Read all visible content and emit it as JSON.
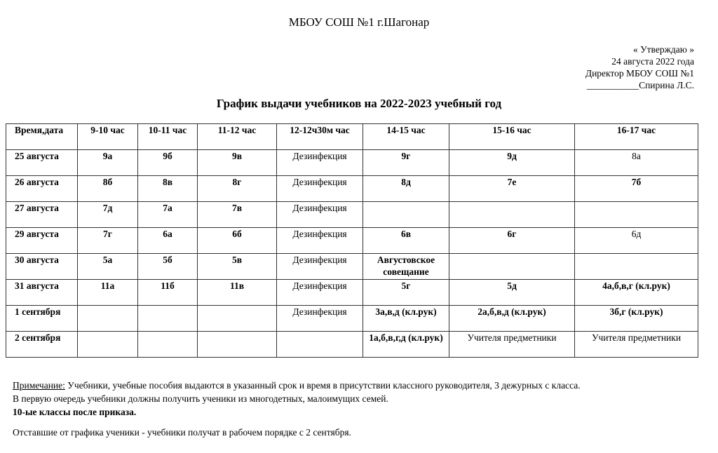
{
  "school": "МБОУ СОШ №1 г.Шагонар",
  "approval": {
    "line1": "« Утверждаю »",
    "line2": "24 августа  2022 года",
    "line3": "Директор МБОУ СОШ №1",
    "line4": "___________Спирина Л.С."
  },
  "title": "График выдачи учебников на 2022-2023 учебный год",
  "table": {
    "headers": [
      "Время,дата",
      "9-10 час",
      "10-11 час",
      "11-12 час",
      "12-12ч30м час",
      "14-15 час",
      "15-16 час",
      "16-17 час"
    ],
    "rows": [
      [
        "25 августа",
        "9а",
        "9б",
        "9в",
        "Дезинфекция",
        "9г",
        "9д",
        "8а"
      ],
      [
        "26 августа",
        "8б",
        "8в",
        "8г",
        "Дезинфекция",
        "8д",
        "7е",
        "7б"
      ],
      [
        "27 августа",
        "7д",
        "7а",
        "7в",
        "Дезинфекция",
        "",
        "",
        ""
      ],
      [
        "29 августа",
        "7г",
        "6а",
        "6б",
        "Дезинфекция",
        "6в",
        "6г",
        "6д"
      ],
      [
        "30 августа",
        "5а",
        "5б",
        "5в",
        "Дезинфекция",
        "Августовское совещание",
        "",
        ""
      ],
      [
        "31 августа",
        "11а",
        "11б",
        "11в",
        "Дезинфекция",
        "5г",
        "5д",
        "4а,б,в,г (кл.рук)"
      ],
      [
        "1 сентября",
        "",
        "",
        "",
        "Дезинфекция",
        "3а,в,д (кл.рук)",
        "2а,б,в,д (кл.рук)",
        "3б,г (кл.рук)"
      ],
      [
        "2 сентября",
        "",
        "",
        "",
        "",
        "1а,б,в,г,д (кл.рук)",
        "Учителя предметники",
        "Учителя предметники"
      ]
    ]
  },
  "notes": {
    "label": "Примечание:",
    "text1": " Учебники, учебные пособия выдаются в указанный срок и время в присутствии классного руководителя, 3 дежурных с класса.",
    "text2": "В первую очередь учебники должны получить ученики из многодетных, малоимущих семей.",
    "bold": "10-ые классы после приказа.",
    "text3": "Отставшие от графика ученики - учебники получат в рабочем порядке с 2 сентября."
  }
}
